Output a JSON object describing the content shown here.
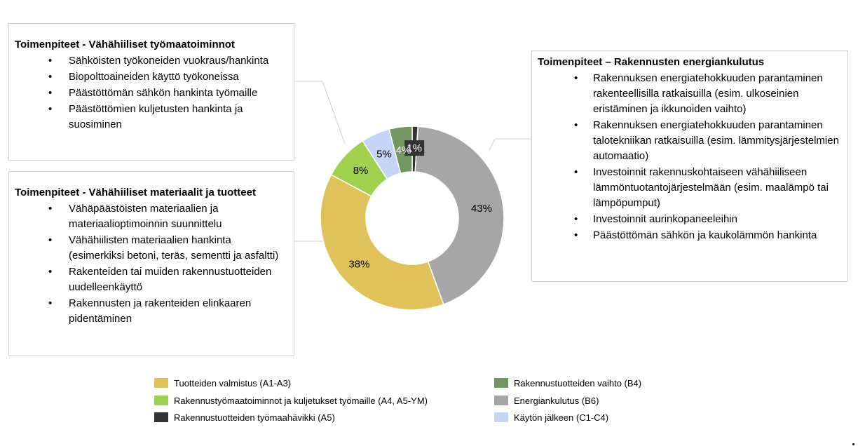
{
  "boxes": {
    "top_left": {
      "title": "Toimenpiteet - Vähähiiliset työmaatoiminnot",
      "items": [
        "Sähköisten työkoneiden vuokraus/hankinta",
        "Biopolttoaineiden käyttö työkoneissa",
        "Päästöttömän sähkön hankinta työmaille",
        "Päästöttömien kuljetusten hankinta ja suosiminen"
      ]
    },
    "bottom_left": {
      "title": "Toimenpiteet - Vähähiiliset materiaalit ja tuotteet",
      "items": [
        "Vähäpäästöisten materiaalien ja materiaalioptimoinnin suunnittelu",
        "Vähähiilisten materiaalien hankinta (esimerkiksi betoni, teräs, sementti ja asfaltti)",
        "Rakenteiden tai muiden rakennustuotteiden uudelleenkäyttö",
        "Rakennusten ja rakenteiden elinkaaren pidentäminen"
      ]
    },
    "right": {
      "title": "Toimenpiteet – Rakennusten energiankulutus",
      "items": [
        "Rakennuksen energiatehokkuuden parantaminen rakenteellisilla ratkaisuilla (esim. ulkoseinien eristäminen ja ikkunoiden vaihto)",
        "Rakennuksen energiatehokkuuden parantaminen talotekniikan ratkaisuilla (esim. lämmitysjärjestelmien automaatio)",
        "Investoinnit rakennuskohtaiseen vähähiiliseen lämmöntuotantojärjestelmään (esim. maalämpö tai lämpöpumput)",
        "Investoinnit aurinkopaneeleihin",
        "Päästöttömän sähkön ja kaukolämmön hankinta"
      ]
    }
  },
  "chart_data": {
    "type": "pie",
    "donut": true,
    "start": "top, clockwise",
    "slices": [
      {
        "label": "Rakennustuotteiden työmaahävikki (A5)",
        "value": 1,
        "display": "1%",
        "color": "#333333",
        "label_color": "#ffffff"
      },
      {
        "label": "Energiankulutus (B6)",
        "value": 43,
        "display": "43%",
        "color": "#a6a6a6",
        "label_color": "#000000"
      },
      {
        "label": "Tuotteiden valmistus (A1-A3)",
        "value": 38,
        "display": "38%",
        "color": "#dfc35a",
        "label_color": "#000000"
      },
      {
        "label": "Rakennustyömaatoiminnot  ja kuljetukset työmaille (A4, A5-YM)",
        "value": 8,
        "display": "8%",
        "color": "#9fd14f",
        "label_color": "#000000"
      },
      {
        "label": "Käytön jälkeen (C1-C4)",
        "value": 5,
        "display": "5%",
        "color": "#c5d4f7",
        "label_color": "#000000"
      },
      {
        "label": "Rakennustuotteiden vaihto (B4)",
        "value": 4,
        "display": "4%",
        "color": "#739762",
        "label_color": "#ffffff"
      }
    ],
    "legend": [
      {
        "label": "Tuotteiden valmistus (A1-A3)",
        "color": "#dfc35a"
      },
      {
        "label": "Rakennustuotteiden vaihto (B4)",
        "color": "#739762"
      },
      {
        "label": "Rakennustyömaatoiminnot  ja kuljetukset työmaille (A4, A5-YM)",
        "color": "#9fd14f"
      },
      {
        "label": "Energiankulutus (B6)",
        "color": "#a6a6a6"
      },
      {
        "label": "Rakennustuotteiden työmaahävikki (A5)",
        "color": "#333333"
      },
      {
        "label": "Käytön jälkeen (C1-C4)",
        "color": "#c5d4f7"
      }
    ],
    "legend_position": "bottom"
  }
}
